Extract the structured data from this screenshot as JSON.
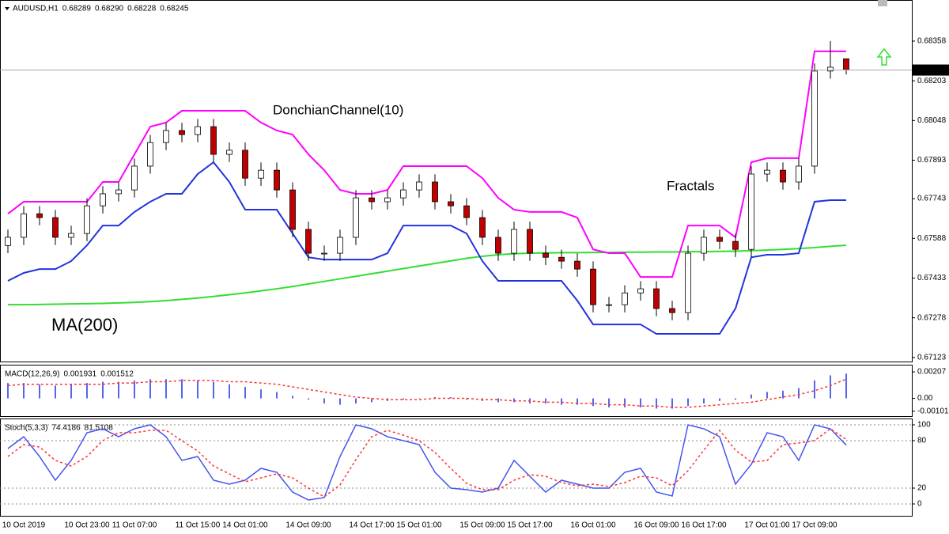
{
  "chart_data": [
    {
      "type": "candlestick",
      "title": "AUDUSD,H1",
      "ohlc_labels": [
        "0.68289",
        "0.68290",
        "0.68228",
        "0.68245"
      ],
      "categories": [
        null,
        "10 Oct 2019",
        null,
        null,
        null,
        "10 Oct 23:00",
        null,
        null,
        "11 Oct 07:00",
        null,
        null,
        null,
        "11 Oct 15:00",
        null,
        null,
        "14 Oct 01:00",
        null,
        null,
        null,
        "14 Oct 09:00",
        null,
        null,
        null,
        "14 Oct 17:00",
        null,
        null,
        "15 Oct 01:00",
        null,
        null,
        null,
        "15 Oct 09:00",
        null,
        null,
        "15 Oct 17:00",
        null,
        null,
        null,
        "16 Oct 01:00",
        null,
        null,
        null,
        "16 Oct 09:00",
        null,
        null,
        "16 Oct 17:00",
        null,
        null,
        null,
        "17 Oct 01:00",
        null,
        null,
        "17 Oct 09:00",
        null,
        null
      ],
      "open": [
        0.6756,
        0.67592,
        0.67684,
        0.67669,
        0.67592,
        0.67607,
        0.67715,
        0.67762,
        0.67777,
        0.6787,
        0.67962,
        0.68009,
        0.67993,
        0.68024,
        0.67916,
        0.67932,
        0.67823,
        0.67854,
        0.67777,
        0.67623,
        0.6753,
        0.6753,
        0.67592,
        0.67746,
        0.67731,
        0.67746,
        0.67777,
        0.67808,
        0.67731,
        0.67715,
        0.67669,
        0.67592,
        0.6753,
        0.67623,
        0.6753,
        0.67514,
        0.67499,
        0.67468,
        0.67329,
        0.67329,
        0.67375,
        0.67391,
        0.67314,
        0.67298,
        0.6753,
        0.67592,
        0.67576,
        0.67545,
        0.67839,
        0.67854,
        0.67808,
        0.6787,
        0.68241,
        0.68289
      ],
      "high": [
        0.67622,
        0.67714,
        0.67714,
        0.67699,
        0.67637,
        0.67745,
        0.67792,
        0.67807,
        0.679,
        0.67992,
        0.68039,
        0.68039,
        0.68054,
        0.68054,
        0.67962,
        0.67962,
        0.67884,
        0.67884,
        0.67807,
        0.67653,
        0.6756,
        0.67622,
        0.67776,
        0.67776,
        0.67776,
        0.67807,
        0.67838,
        0.67838,
        0.67761,
        0.67745,
        0.67699,
        0.67622,
        0.67653,
        0.67653,
        0.6756,
        0.67544,
        0.67529,
        0.67498,
        0.67359,
        0.67405,
        0.67421,
        0.67421,
        0.67344,
        0.6756,
        0.67622,
        0.67622,
        0.67606,
        0.67869,
        0.67884,
        0.67884,
        0.679,
        0.68271,
        0.68358,
        0.6829
      ],
      "low": [
        0.6753,
        0.67562,
        0.67639,
        0.67562,
        0.67562,
        0.67577,
        0.67685,
        0.67732,
        0.67747,
        0.6784,
        0.67932,
        0.67963,
        0.67963,
        0.67886,
        0.67886,
        0.67793,
        0.67793,
        0.67747,
        0.67593,
        0.675,
        0.675,
        0.675,
        0.67562,
        0.67701,
        0.67701,
        0.67716,
        0.67747,
        0.67701,
        0.67685,
        0.67639,
        0.67562,
        0.675,
        0.675,
        0.675,
        0.67484,
        0.67469,
        0.67438,
        0.67299,
        0.67299,
        0.67299,
        0.67345,
        0.67284,
        0.67268,
        0.67268,
        0.675,
        0.67546,
        0.67515,
        0.67515,
        0.67809,
        0.67778,
        0.67778,
        0.6784,
        0.68211,
        0.68228
      ],
      "close": [
        0.67592,
        0.67684,
        0.67669,
        0.67592,
        0.67607,
        0.67715,
        0.67762,
        0.67777,
        0.6787,
        0.67962,
        0.68009,
        0.67993,
        0.68024,
        0.67916,
        0.67932,
        0.67823,
        0.67854,
        0.67777,
        0.67623,
        0.6753,
        0.6753,
        0.67592,
        0.67746,
        0.67731,
        0.67746,
        0.67777,
        0.67808,
        0.67731,
        0.67715,
        0.67669,
        0.67592,
        0.6753,
        0.67623,
        0.6753,
        0.67514,
        0.67499,
        0.67468,
        0.67329,
        0.67329,
        0.67375,
        0.67391,
        0.67314,
        0.67298,
        0.6753,
        0.67592,
        0.67576,
        0.67545,
        0.67839,
        0.67854,
        0.67808,
        0.6787,
        0.68241,
        0.68256,
        0.68245
      ],
      "up_color": "#ffffff",
      "down_color": "#c00000",
      "donchian": {
        "name": "DonchianChannel(10)",
        "upper_color": "#ff00ff",
        "lower_color": "#2233dd",
        "upper": [
          0.67684,
          0.67731,
          0.67731,
          0.67731,
          0.67731,
          0.67731,
          0.67808,
          0.67808,
          0.67916,
          0.68024,
          0.6804,
          0.68086,
          0.68086,
          0.68086,
          0.68086,
          0.68086,
          0.6804,
          0.68009,
          0.67993,
          0.67916,
          0.67854,
          0.67777,
          0.67762,
          0.67762,
          0.67777,
          0.6787,
          0.6787,
          0.6787,
          0.6787,
          0.6787,
          0.67823,
          0.67746,
          0.677,
          0.67691,
          0.67691,
          0.67691,
          0.67669,
          0.67545,
          0.6753,
          0.6753,
          0.67437,
          0.67437,
          0.67437,
          0.67638,
          0.67638,
          0.67638,
          0.67592,
          0.67885,
          0.67901,
          0.67901,
          0.67901,
          0.68318,
          0.68318,
          0.68318
        ],
        "lower": [
          0.67422,
          0.67453,
          0.67468,
          0.67468,
          0.67499,
          0.67561,
          0.67638,
          0.67638,
          0.67691,
          0.67731,
          0.67762,
          0.67762,
          0.67839,
          0.67885,
          0.67808,
          0.677,
          0.677,
          0.677,
          0.67607,
          0.67514,
          0.67505,
          0.67505,
          0.67505,
          0.67505,
          0.6753,
          0.67638,
          0.67638,
          0.67638,
          0.67638,
          0.67607,
          0.67499,
          0.67422,
          0.67422,
          0.67422,
          0.67422,
          0.67422,
          0.67345,
          0.67252,
          0.67252,
          0.67252,
          0.67252,
          0.67215,
          0.67215,
          0.67215,
          0.67215,
          0.67215,
          0.67314,
          0.67514,
          0.67524,
          0.67524,
          0.6753,
          0.67731,
          0.67737,
          0.67737
        ]
      },
      "ma": {
        "name": "MA(200)",
        "color": "#33dd33",
        "values": [
          0.67329,
          0.67329,
          0.6733,
          0.67331,
          0.67332,
          0.67333,
          0.67334,
          0.67336,
          0.67338,
          0.67341,
          0.67345,
          0.6735,
          0.67355,
          0.67361,
          0.67368,
          0.67375,
          0.67383,
          0.67391,
          0.674,
          0.6741,
          0.6742,
          0.6743,
          0.6744,
          0.6745,
          0.6746,
          0.6747,
          0.6748,
          0.6749,
          0.675,
          0.6751,
          0.67518,
          0.67524,
          0.67528,
          0.6753,
          0.67531,
          0.67532,
          0.67532,
          0.67533,
          0.67533,
          0.67534,
          0.67534,
          0.67535,
          0.67535,
          0.67536,
          0.67536,
          0.67537,
          0.67538,
          0.6754,
          0.67542,
          0.67545,
          0.67548,
          0.67552,
          0.67557,
          0.67561
        ]
      },
      "annotations": [
        "Fractals"
      ],
      "ylim": [
        0.67104,
        0.68503
      ],
      "yticks": [
        0.68358,
        0.68203,
        0.68048,
        0.67893,
        0.67743,
        0.67588,
        0.67433,
        0.67278,
        0.67123
      ],
      "grid": false
    },
    {
      "type": "macd",
      "title": "MACD(12,26,9)",
      "histogram": {
        "color": "#5566ee",
        "values": [
          0.0012,
          0.0012,
          0.0011,
          0.001,
          0.0011,
          0.0012,
          0.0013,
          0.0013,
          0.0014,
          0.0015,
          0.0015,
          0.0015,
          0.0014,
          0.0013,
          0.0011,
          0.0009,
          0.0007,
          0.0005,
          0.0002,
          -0.0001,
          -0.0004,
          -0.0005,
          -0.0004,
          -0.0003,
          -0.0002,
          -0.0001,
          0,
          0.0001,
          0.0001,
          -0.0001,
          -0.0002,
          -0.0003,
          -0.0003,
          -0.0004,
          -0.0004,
          -0.0005,
          -0.0005,
          -0.0006,
          -0.0007,
          -0.0007,
          -0.0007,
          -0.0008,
          -0.0008,
          -0.0006,
          -0.0004,
          -0.0002,
          -0.0001,
          0.0003,
          0.0005,
          0.0006,
          0.0008,
          0.0014,
          0.0018,
          0.001931
        ]
      },
      "signal": {
        "color": "#ff3333",
        "values": [
          0.001,
          0.0011,
          0.0011,
          0.0011,
          0.0011,
          0.0011,
          0.0011,
          0.0012,
          0.0012,
          0.0013,
          0.0013,
          0.0014,
          0.0014,
          0.0014,
          0.0013,
          0.0013,
          0.0012,
          0.0011,
          0.0009,
          0.0007,
          0.0005,
          0.0003,
          0.0001,
          0,
          -0.0001,
          -0.0001,
          -0.0001,
          0,
          0,
          0,
          -0.0001,
          -0.0001,
          -0.0002,
          -0.0002,
          -0.0003,
          -0.0003,
          -0.0004,
          -0.0004,
          -0.0005,
          -0.0005,
          -0.0006,
          -0.0006,
          -0.0007,
          -0.0007,
          -0.0006,
          -0.0005,
          -0.0004,
          -0.0003,
          -0.0001,
          0.0001,
          0.0003,
          0.0006,
          0.001,
          0.001512
        ]
      },
      "ylim": [
        -0.00145,
        0.00257
      ],
      "yticks": [
        0.00207,
        {
          "value": 0,
          "label": "0.00"
        },
        -0.00101
      ],
      "grid": false
    },
    {
      "type": "line",
      "title": "Stoch(5,3,3)",
      "series": [
        {
          "color": "#4455ee",
          "style": "solid",
          "values": [
            70,
            85,
            60,
            30,
            55,
            90,
            95,
            85,
            95,
            100,
            85,
            55,
            60,
            30,
            25,
            30,
            45,
            40,
            15,
            5,
            8,
            60,
            100,
            95,
            85,
            80,
            75,
            40,
            20,
            18,
            15,
            20,
            55,
            35,
            15,
            30,
            25,
            20,
            20,
            40,
            45,
            15,
            10,
            100,
            95,
            85,
            25,
            50,
            90,
            85,
            55,
            100,
            95,
            74.4186
          ]
        },
        {
          "color": "#ff3333",
          "style": "dashed",
          "values": [
            60,
            75,
            72,
            55,
            48,
            60,
            80,
            90,
            90,
            93,
            93,
            80,
            67,
            48,
            38,
            28,
            33,
            38,
            33,
            20,
            9,
            24,
            56,
            85,
            93,
            87,
            80,
            65,
            45,
            26,
            18,
            18,
            30,
            37,
            35,
            27,
            23,
            25,
            22,
            27,
            35,
            33,
            23,
            42,
            68,
            93,
            68,
            53,
            55,
            75,
            77,
            80,
            95,
            81.5108
          ]
        }
      ],
      "ylim": [
        -15,
        107
      ],
      "yticks": [
        100,
        80,
        20,
        0
      ],
      "grid": true
    }
  ]
}
